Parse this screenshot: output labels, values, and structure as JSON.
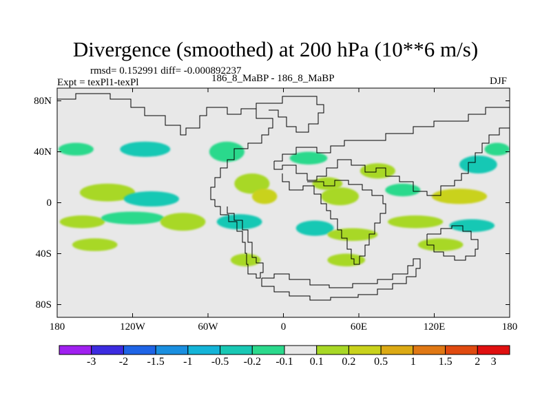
{
  "chart_data": {
    "type": "heatmap",
    "title": "Divergence (smoothed) at 200 hPa (10**6 m/s)",
    "stats_text": "rmsd= 0.152991 diff= -0.000892237",
    "experiment_text": "Expt = texPl1-texPl",
    "runs_text": "186_8_MaBP - 186_8_MaBP",
    "season": "DJF",
    "x_tick_labels": [
      "180",
      "120W",
      "60W",
      "0",
      "60E",
      "120E",
      "180"
    ],
    "y_tick_labels": [
      "80N",
      "40N",
      "0",
      "40S",
      "80S"
    ],
    "x_range": [
      -180,
      180
    ],
    "y_range": [
      -90,
      90
    ],
    "colorbar": {
      "labels": [
        "-3",
        "-2",
        "-1.5",
        "-1",
        "-0.5",
        "-0.2",
        "-0.1",
        "0.1",
        "0.2",
        "0.5",
        "1",
        "1.5",
        "2",
        "3"
      ],
      "colors": [
        "#a020f0",
        "#3c2be0",
        "#1f64e6",
        "#1a8fe0",
        "#14b4d8",
        "#19c8b4",
        "#2bd98c",
        "#e8e8e8",
        "#a8d826",
        "#c9d21c",
        "#dcaa14",
        "#e07814",
        "#e04a10",
        "#e01010"
      ]
    },
    "background_color": "#e8e8e8",
    "field_regions": [
      {
        "level": "0.1",
        "lon": -140,
        "lat": 35,
        "rlon": 18,
        "rlat": 6
      },
      {
        "level": "-0.1",
        "lon": -165,
        "lat": 42,
        "rlon": 14,
        "rlat": 5
      },
      {
        "level": "-0.2",
        "lon": -110,
        "lat": 42,
        "rlon": 20,
        "rlat": 6
      },
      {
        "level": "0.1",
        "lon": -75,
        "lat": 45,
        "rlon": 10,
        "rlat": 7
      },
      {
        "level": "-0.1",
        "lon": -45,
        "lat": 40,
        "rlon": 14,
        "rlat": 8
      },
      {
        "level": "0.2",
        "lon": -140,
        "lat": 8,
        "rlon": 22,
        "rlat": 7
      },
      {
        "level": "-0.2",
        "lon": -105,
        "lat": 3,
        "rlon": 22,
        "rlat": 6
      },
      {
        "level": "0.2",
        "lon": -160,
        "lat": -15,
        "rlon": 18,
        "rlat": 5
      },
      {
        "level": "-0.1",
        "lon": -120,
        "lat": -12,
        "rlon": 25,
        "rlat": 5
      },
      {
        "level": "0.2",
        "lon": -80,
        "lat": -15,
        "rlon": 18,
        "rlat": 7
      },
      {
        "level": "-0.2",
        "lon": -35,
        "lat": -15,
        "rlon": 18,
        "rlat": 6
      },
      {
        "level": "0.2",
        "lon": -150,
        "lat": -33,
        "rlon": 18,
        "rlat": 5
      },
      {
        "level": "0.2",
        "lon": -25,
        "lat": 15,
        "rlon": 14,
        "rlat": 8
      },
      {
        "level": "0.5",
        "lon": -15,
        "lat": 5,
        "rlon": 10,
        "rlat": 6
      },
      {
        "level": "-0.1",
        "lon": 20,
        "lat": 35,
        "rlon": 15,
        "rlat": 5
      },
      {
        "level": "0.2",
        "lon": 45,
        "lat": 5,
        "rlon": 15,
        "rlat": 7
      },
      {
        "level": "-0.2",
        "lon": 25,
        "lat": -20,
        "rlon": 15,
        "rlat": 6
      },
      {
        "level": "0.2",
        "lon": 55,
        "lat": -25,
        "rlon": 20,
        "rlat": 5
      },
      {
        "level": "0.2",
        "lon": 35,
        "lat": 15,
        "rlon": 12,
        "rlat": 5
      },
      {
        "level": "0.2",
        "lon": 75,
        "lat": 25,
        "rlon": 14,
        "rlat": 6
      },
      {
        "level": "-0.1",
        "lon": 95,
        "lat": 10,
        "rlon": 14,
        "rlat": 5
      },
      {
        "level": "0.5",
        "lon": 140,
        "lat": 5,
        "rlon": 22,
        "rlat": 6
      },
      {
        "level": "-0.2",
        "lon": 155,
        "lat": 30,
        "rlon": 15,
        "rlat": 7
      },
      {
        "level": "-0.1",
        "lon": 170,
        "lat": 42,
        "rlon": 10,
        "rlat": 5
      },
      {
        "level": "0.2",
        "lon": 105,
        "lat": -15,
        "rlon": 22,
        "rlat": 5
      },
      {
        "level": "-0.2",
        "lon": 150,
        "lat": -18,
        "rlon": 18,
        "rlat": 5
      },
      {
        "level": "0.2",
        "lon": 125,
        "lat": -33,
        "rlon": 18,
        "rlat": 5
      },
      {
        "level": "0.2",
        "lon": -30,
        "lat": -45,
        "rlon": 12,
        "rlat": 5
      },
      {
        "level": "0.2",
        "lon": 50,
        "lat": -45,
        "rlon": 15,
        "rlat": 5
      }
    ]
  }
}
